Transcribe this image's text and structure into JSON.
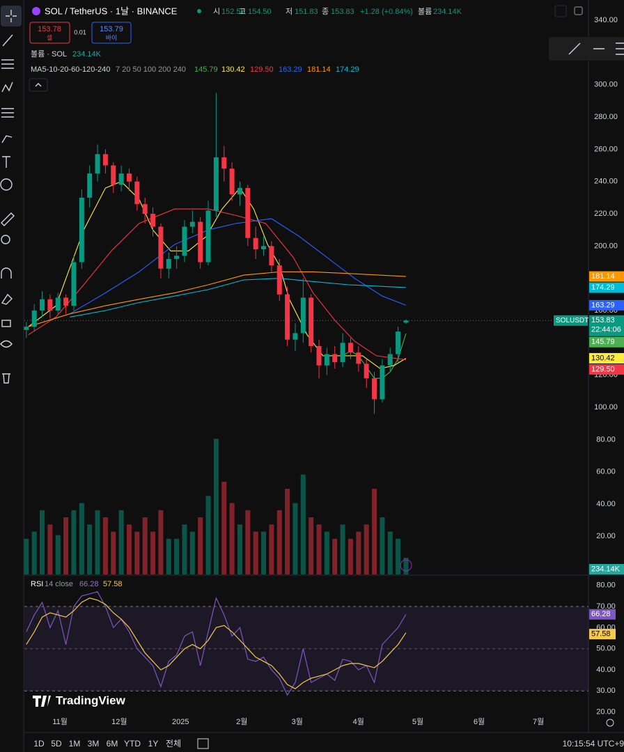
{
  "header": {
    "symbol": "SOL / TetherUS · 1날 · BINANCE",
    "open_label": "시",
    "high_label": "고",
    "low_label": "저",
    "close_label": "종",
    "change": "+1.28",
    "change_pct": "(+0.84%)",
    "volume_label": "볼륨",
    "sell": {
      "price": 153.78,
      "label": "셀"
    },
    "spread": 0.01,
    "buy": {
      "price": 153.79,
      "label": "바이"
    },
    "volume_legend": "볼륨 · SOL",
    "ma_legend": "MA5-10-20-60-120-240",
    "ma_params": "7 20 50 100 200 240",
    "symbol_tag": "SOLUSDT",
    "countdown": "22:44:06",
    "rsi_legend": "RSI",
    "rsi_params": "14 close",
    "logo": "TradingView"
  },
  "chart_data": [
    {
      "type": "candlestick",
      "up_color": "#089981",
      "down_color": "#f23645",
      "grid": false,
      "last_price_line": true,
      "x": [
        -17,
        -13,
        -9,
        -5,
        -1,
        3,
        7,
        11,
        15,
        19,
        23,
        27,
        31,
        35,
        39,
        43,
        47,
        51,
        55,
        59,
        63,
        67,
        71,
        75,
        79,
        83,
        87,
        91,
        95,
        99,
        103,
        107,
        111,
        115,
        119,
        123,
        127,
        131,
        135,
        139,
        143,
        147,
        151,
        155,
        159,
        163,
        167,
        171,
        175
      ],
      "open": [
        148,
        150,
        160,
        167,
        160,
        168,
        163,
        190,
        230,
        245,
        257,
        250,
        238,
        245,
        240,
        226,
        220,
        212,
        186,
        192,
        194,
        212,
        215,
        190,
        222,
        255,
        248,
        232,
        236,
        205,
        198,
        200,
        188,
        170,
        142,
        146,
        168,
        138,
        126,
        133,
        128,
        140,
        134,
        127,
        118,
        105,
        126,
        133,
        152.55
      ],
      "high": [
        153,
        164,
        172,
        170,
        171,
        170,
        194,
        235,
        250,
        263,
        260,
        252,
        250,
        248,
        243,
        230,
        224,
        214,
        196,
        200,
        216,
        222,
        218,
        228,
        295,
        262,
        252,
        240,
        238,
        212,
        206,
        203,
        192,
        175,
        152,
        180,
        170,
        142,
        137,
        138,
        146,
        143,
        138,
        130,
        122,
        130,
        137,
        150,
        154.5
      ],
      "high_labels": [
        null,
        null,
        null,
        null,
        null,
        null,
        null,
        null,
        null,
        null,
        null,
        null,
        null,
        null,
        null,
        null,
        null,
        null,
        null,
        null,
        null,
        null,
        null,
        null,
        null,
        null,
        null,
        null,
        null,
        null,
        null,
        null,
        null,
        null,
        null,
        null,
        null,
        null,
        null,
        null,
        null,
        null,
        null,
        null,
        null,
        null,
        null,
        null,
        "154.50"
      ],
      "low": [
        143,
        147,
        156,
        155,
        158,
        158,
        160,
        186,
        224,
        240,
        245,
        233,
        234,
        234,
        222,
        214,
        206,
        180,
        180,
        186,
        190,
        208,
        186,
        188,
        218,
        240,
        228,
        225,
        200,
        192,
        194,
        184,
        166,
        138,
        135,
        140,
        134,
        118,
        120,
        124,
        125,
        130,
        122,
        112,
        96,
        103,
        122,
        128,
        151.83
      ],
      "close": [
        150,
        160,
        167,
        160,
        168,
        163,
        190,
        230,
        245,
        257,
        250,
        238,
        245,
        240,
        226,
        220,
        212,
        186,
        192,
        194,
        212,
        215,
        190,
        222,
        255,
        248,
        232,
        236,
        205,
        198,
        200,
        188,
        170,
        142,
        146,
        168,
        138,
        126,
        133,
        128,
        140,
        134,
        127,
        118,
        105,
        126,
        133,
        147,
        153.83
      ],
      "volume": [
        500,
        600,
        900,
        700,
        550,
        800,
        900,
        1000,
        700,
        900,
        800,
        600,
        900,
        700,
        600,
        800,
        600,
        900,
        500,
        500,
        700,
        600,
        800,
        1100,
        1900,
        1300,
        1000,
        700,
        900,
        600,
        600,
        700,
        900,
        1200,
        1000,
        1400,
        800,
        700,
        600,
        500,
        700,
        500,
        600,
        700,
        1200,
        800,
        600,
        500,
        234.14
      ],
      "volume_labels": [
        null,
        null,
        null,
        null,
        null,
        null,
        null,
        null,
        null,
        null,
        null,
        null,
        null,
        null,
        null,
        null,
        null,
        null,
        null,
        null,
        null,
        null,
        null,
        null,
        null,
        null,
        null,
        null,
        null,
        null,
        null,
        null,
        null,
        null,
        null,
        null,
        null,
        null,
        null,
        null,
        null,
        null,
        null,
        null,
        null,
        null,
        null,
        null,
        "234.14K"
      ],
      "vlim": [
        0,
        2000
      ],
      "ma": [
        {
          "color": "#4caf50",
          "x": [
            143,
            147,
            151,
            155,
            159,
            163,
            167,
            171,
            175
          ],
          "values": [
            132,
            135,
            132,
            125,
            118,
            118,
            122,
            130,
            145.79
          ]
        },
        {
          "color": "#ffeb3b",
          "x": [
            -16,
            -2,
            12,
            23,
            31,
            40,
            47,
            56,
            65,
            74,
            82,
            91,
            98,
            105,
            111,
            116,
            125,
            133,
            144,
            153,
            162,
            169,
            175
          ],
          "values": [
            150,
            163,
            210,
            236,
            240,
            229,
            210,
            197,
            197,
            206,
            223,
            236,
            223,
            201,
            188,
            167,
            145,
            132,
            132,
            132,
            124,
            126,
            130.42
          ]
        },
        {
          "color": "#f23645",
          "x": [
            -16,
            -2,
            12,
            26,
            40,
            58,
            75,
            89,
            104,
            118,
            128,
            139,
            149,
            160,
            175
          ],
          "values": [
            145,
            156,
            176,
            197,
            214,
            223,
            223,
            219,
            214,
            193,
            171,
            154,
            141,
            132,
            129.5
          ],
          "value_labels": [
            null,
            null,
            null,
            null,
            null,
            null,
            null,
            null,
            null,
            null,
            null,
            null,
            null,
            null,
            "129.50"
          ]
        },
        {
          "color": "#2962ff",
          "x": [
            5,
            23,
            40,
            58,
            75,
            89,
            107,
            121,
            135,
            149,
            163,
            175
          ],
          "values": [
            158,
            171,
            184,
            201,
            210,
            214,
            217,
            206,
            193,
            180,
            169,
            163.29
          ]
        },
        {
          "color": "#ff9800",
          "x": [
            -16,
            5,
            23,
            40,
            58,
            75,
            93,
            111,
            128,
            146,
            175
          ],
          "values": [
            150,
            158,
            163,
            167,
            171,
            176,
            182,
            184,
            184,
            183,
            181.14
          ]
        },
        {
          "color": "#00bcd4",
          "x": [
            5,
            23,
            40,
            58,
            75,
            93,
            111,
            128,
            146,
            175
          ],
          "values": [
            156,
            160,
            165,
            169,
            173,
            179,
            180,
            178,
            176,
            174.29
          ]
        }
      ],
      "xlim": [
        -18,
        267.3
      ],
      "xticks": [
        {
          "value": 0,
          "label": "11월"
        },
        {
          "value": 30,
          "label": "12월"
        },
        {
          "value": 61,
          "label": "2025"
        },
        {
          "value": 92,
          "label": "2월"
        },
        {
          "value": 120,
          "label": "3월"
        },
        {
          "value": 151,
          "label": "4월"
        },
        {
          "value": 181,
          "label": "5월"
        },
        {
          "value": 212,
          "label": "6월"
        },
        {
          "value": 242,
          "label": "7월"
        }
      ],
      "ylim": [
        -3.6,
        349.1
      ],
      "yticks": [
        {
          "value": 20,
          "label": "20.00"
        },
        {
          "value": 40,
          "label": "40.00"
        },
        {
          "value": 60,
          "label": "60.00"
        },
        {
          "value": 80,
          "label": "80.00"
        },
        {
          "value": 100,
          "label": "100.00"
        },
        {
          "value": 120,
          "label": "120.00"
        },
        {
          "value": 140,
          "label": "140.00"
        },
        {
          "value": 160,
          "label": "160.00"
        },
        {
          "value": 180,
          "label": "180.00"
        },
        {
          "value": 200,
          "label": "200.00"
        },
        {
          "value": 220,
          "label": "220.00"
        },
        {
          "value": 240,
          "label": "240.00"
        },
        {
          "value": 260,
          "label": "260.00"
        },
        {
          "value": 280,
          "label": "280.00"
        },
        {
          "value": 300,
          "label": "300.00"
        },
        {
          "value": 320,
          "label": "320.00"
        },
        {
          "value": 340,
          "label": "340.00"
        }
      ]
    },
    {
      "type": "line",
      "grid": false,
      "x": [
        -17,
        -13,
        -9,
        -5,
        -1,
        3,
        7,
        11,
        15,
        19,
        23,
        27,
        31,
        35,
        39,
        43,
        47,
        51,
        55,
        59,
        63,
        67,
        71,
        75,
        79,
        83,
        87,
        91,
        95,
        99,
        103,
        107,
        111,
        115,
        119,
        123,
        127,
        131,
        135,
        139,
        143,
        147,
        151,
        155,
        159,
        163,
        167,
        171,
        175
      ],
      "series": [
        {
          "color": "#7e57c2",
          "values": [
            58,
            66,
            72,
            60,
            68,
            52,
            70,
            75,
            76,
            77,
            70,
            60,
            64,
            58,
            50,
            46,
            42,
            32,
            44,
            47,
            56,
            58,
            42,
            58,
            74,
            66,
            56,
            60,
            45,
            44,
            46,
            40,
            36,
            28,
            34,
            50,
            34,
            36,
            38,
            35,
            45,
            44,
            40,
            42,
            34,
            52,
            56,
            60,
            66.28
          ]
        },
        {
          "color": "#f7c948",
          "values": [
            52,
            58,
            65,
            67,
            66,
            65,
            68,
            72,
            74,
            73,
            71,
            67,
            64,
            60,
            54,
            48,
            44,
            40,
            42,
            46,
            50,
            52,
            50,
            54,
            60,
            61,
            58,
            54,
            50,
            46,
            44,
            42,
            38,
            33,
            31,
            34,
            36,
            37,
            38,
            40,
            42,
            43,
            43,
            42,
            41,
            44,
            48,
            52,
            57.58
          ]
        }
      ],
      "bands": [
        30,
        70
      ],
      "midline": 50,
      "xlim": [
        -18,
        267.3
      ],
      "ylim": [
        19.2,
        84.2
      ],
      "yticks": [
        {
          "value": 20,
          "label": "20.00"
        },
        {
          "value": 30,
          "label": "30.00"
        },
        {
          "value": 40,
          "label": "40.00"
        },
        {
          "value": 50,
          "label": "50.00"
        },
        {
          "value": 60,
          "label": "60.00"
        },
        {
          "value": 70,
          "label": "70.00"
        },
        {
          "value": 80,
          "label": "80.00"
        }
      ]
    }
  ],
  "toolbar": {
    "timeframes": [
      "1D",
      "5D",
      "1M",
      "3M",
      "6M",
      "YTD",
      "1Y",
      "전체"
    ],
    "clock": "10:15:54 UTC+9"
  }
}
